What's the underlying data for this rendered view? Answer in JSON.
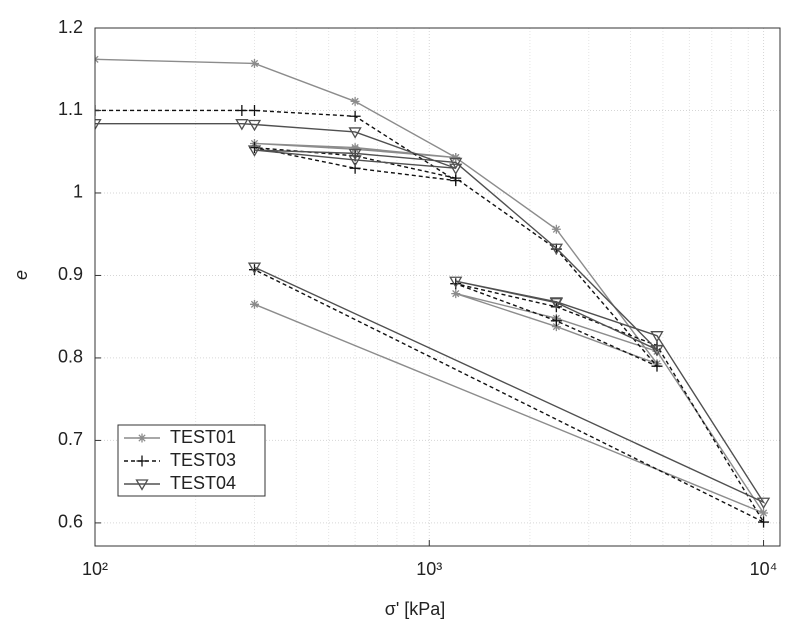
{
  "chart_data": {
    "type": "line",
    "xlabel": "σ' [kPa]",
    "ylabel": "e",
    "log_x": true,
    "grid": true,
    "legend": "lower-left",
    "xlim": [
      100,
      11200
    ],
    "ylim": [
      0.572,
      1.2
    ],
    "xticks": [
      {
        "value": 100,
        "label": "10²"
      },
      {
        "value": 1000,
        "label": "10³"
      },
      {
        "value": 10000,
        "label": "10⁴"
      }
    ],
    "yticks": [
      0.6,
      0.7,
      0.8,
      0.9,
      1,
      1.1,
      1.2
    ],
    "series": [
      {
        "name": "TEST01",
        "color": "#8c8c8c",
        "dash": "solid",
        "marker": "asterisk",
        "x": [
          100,
          300,
          600,
          1200,
          600,
          300,
          600,
          1200,
          2400,
          4800,
          2400,
          1200,
          2400,
          4800,
          10000,
          300
        ],
        "values": [
          1.162,
          1.157,
          1.111,
          1.043,
          1.053,
          1.06,
          1.055,
          1.043,
          0.956,
          0.793,
          0.838,
          0.878,
          0.848,
          0.808,
          0.612,
          0.865
        ]
      },
      {
        "name": "TEST03",
        "color": "#111111",
        "dash": "dashed",
        "marker": "plus",
        "x": [
          100,
          275,
          300,
          600,
          1200,
          600,
          300,
          600,
          1200,
          2400,
          4800,
          2400,
          1200,
          2400,
          4800,
          10000,
          300
        ],
        "values": [
          1.1,
          1.1,
          1.1,
          1.093,
          1.015,
          1.03,
          1.055,
          1.045,
          1.018,
          0.932,
          0.79,
          0.845,
          0.89,
          0.862,
          0.815,
          0.601,
          0.907
        ]
      },
      {
        "name": "TEST04",
        "color": "#505050",
        "dash": "solid",
        "marker": "triangle-down",
        "x": [
          100,
          275,
          300,
          600,
          1200,
          600,
          300,
          600,
          1200,
          2400,
          4800,
          2400,
          1200,
          2400,
          4800,
          10000,
          300
        ],
        "values": [
          1.084,
          1.084,
          1.083,
          1.074,
          1.03,
          1.04,
          1.052,
          1.048,
          1.037,
          0.933,
          0.81,
          0.867,
          0.893,
          0.868,
          0.827,
          0.625,
          0.91
        ]
      }
    ]
  }
}
